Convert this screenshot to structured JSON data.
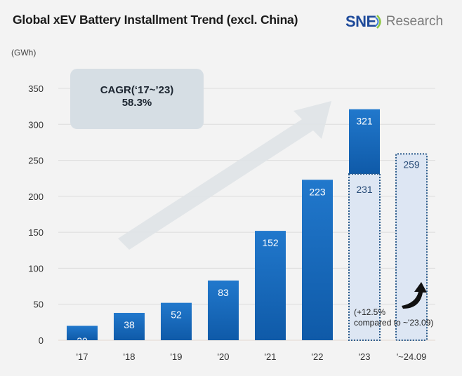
{
  "header": {
    "title": "Global xEV Battery Installment Trend (excl. China)",
    "logo_primary": "SNE",
    "logo_secondary": "Research",
    "brand_color": "#1e4a9a"
  },
  "annotations": {
    "cagr_label": "CAGR(‘17~’23)",
    "cagr_value": "58.3%",
    "growth_note_line1": "(+12.5%",
    "growth_note_line2": "compared to ~'23.09)",
    "trend_arrow_icon": "trend-up-arrow",
    "curved_arrow_icon": "curved-up-arrow"
  },
  "chart_data": {
    "type": "bar",
    "title": "Global xEV Battery Installment Trend (excl. China)",
    "ylabel": "(GWh)",
    "xlabel": "",
    "ylim": [
      0,
      350
    ],
    "yticks": [
      0,
      50,
      100,
      150,
      200,
      250,
      300,
      350
    ],
    "grid": true,
    "categories": [
      "'17",
      "'18",
      "'19",
      "'20",
      "'21",
      "'22",
      "'23",
      "'~24.09"
    ],
    "values": [
      20,
      38,
      52,
      83,
      152,
      223,
      321,
      259
    ],
    "value_labels": [
      "20",
      "38",
      "52",
      "83",
      "152",
      "223",
      "321",
      "259"
    ],
    "partial": {
      "category": "'23",
      "value": 231,
      "label": "231",
      "note": "Jan–Sep portion of '23 shown as dotted light segment"
    },
    "colors": {
      "bar": "#1a6fc4",
      "bar_dark": "#0f5aa8",
      "partial_fill": "#dde6f3",
      "partial_border": "#2a5a8a"
    }
  }
}
